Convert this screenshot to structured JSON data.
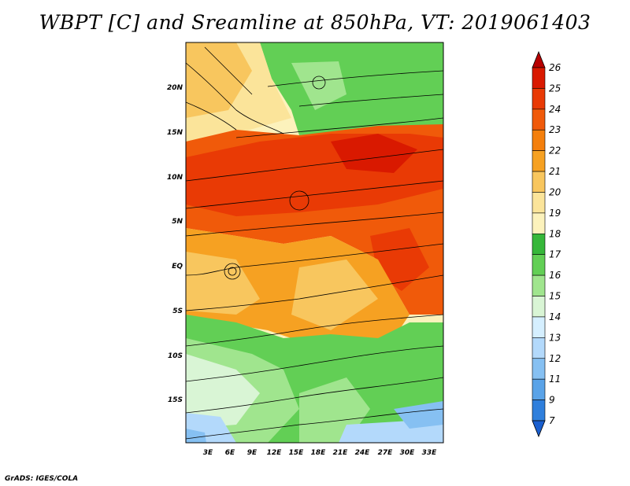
{
  "title": "WBPT [C] and Sreamline at 850hPa, VT: 2019061403",
  "footer": "GrADS: IGES/COLA",
  "map": {
    "lat_ticks": [
      "20N",
      "15N",
      "10N",
      "5N",
      "EQ",
      "5S",
      "10S",
      "15S"
    ],
    "lon_ticks": [
      "3E",
      "6E",
      "9E",
      "12E",
      "15E",
      "18E",
      "21E",
      "24E",
      "27E",
      "30E",
      "33E"
    ]
  },
  "colorbar": {
    "labels": [
      "26",
      "25",
      "24",
      "23",
      "22",
      "21",
      "20",
      "19",
      "18",
      "17",
      "16",
      "15",
      "14",
      "13",
      "12",
      "11",
      "9",
      "7"
    ],
    "colors": [
      "#b70000",
      "#d91900",
      "#e93a05",
      "#f05a0a",
      "#f47f0c",
      "#f6a122",
      "#f8c65e",
      "#fbe49a",
      "#fcf2bc",
      "#36b73a",
      "#62cf55",
      "#a0e58e",
      "#d9f5d5",
      "#d5efff",
      "#b3d9fb",
      "#86c0f2",
      "#5aa3e8",
      "#2f7fdc",
      "#1a5fcf"
    ]
  }
}
